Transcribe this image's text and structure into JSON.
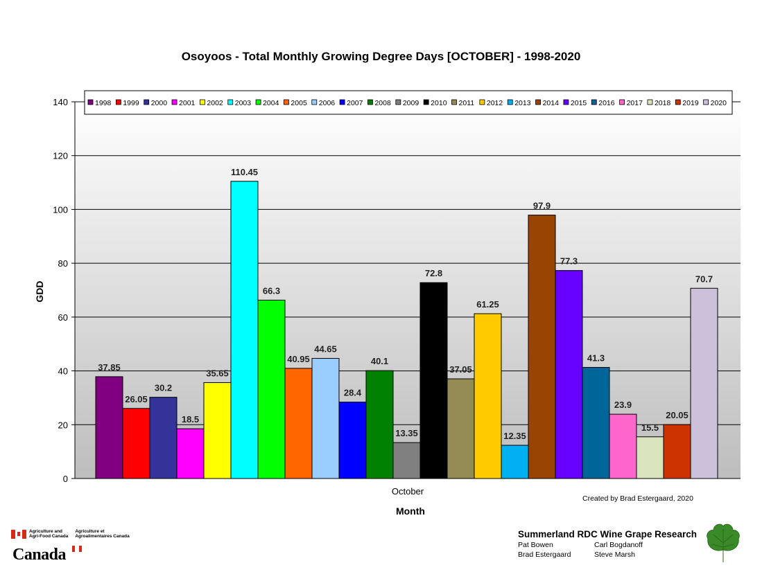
{
  "chart_data": {
    "type": "bar",
    "title": "Osoyoos - Total Monthly Growing Degree Days [OCTOBER] - 1998-2020",
    "xlabel": "Month",
    "ylabel": "GDD",
    "categories": [
      "October"
    ],
    "ylim": [
      0,
      140
    ],
    "yticks": [
      "0",
      "20",
      "40",
      "60",
      "80",
      "100",
      "120",
      "140"
    ],
    "grid": true,
    "legend_position": "top",
    "series": [
      {
        "name": "1998",
        "value": 37.85,
        "label": "37.85",
        "color": "#800080"
      },
      {
        "name": "1999",
        "value": 26.05,
        "label": "26.05",
        "color": "#ff0000"
      },
      {
        "name": "2000",
        "value": 30.2,
        "label": "30.2",
        "color": "#333399"
      },
      {
        "name": "2001",
        "value": 18.5,
        "label": "18.5",
        "color": "#ff00ff"
      },
      {
        "name": "2002",
        "value": 35.65,
        "label": "35.65",
        "color": "#ffff00"
      },
      {
        "name": "2003",
        "value": 110.45,
        "label": "110.45",
        "color": "#00ffff"
      },
      {
        "name": "2004",
        "value": 66.3,
        "label": "66.3",
        "color": "#00ff00"
      },
      {
        "name": "2005",
        "value": 40.95,
        "label": "40.95",
        "color": "#ff6600"
      },
      {
        "name": "2006",
        "value": 44.65,
        "label": "44.65",
        "color": "#99ccff"
      },
      {
        "name": "2007",
        "value": 28.4,
        "label": "28.4",
        "color": "#0000ff"
      },
      {
        "name": "2008",
        "value": 40.1,
        "label": "40.1",
        "color": "#008000"
      },
      {
        "name": "2009",
        "value": 13.35,
        "label": "13.35",
        "color": "#808080"
      },
      {
        "name": "2010",
        "value": 72.8,
        "label": "72.8",
        "color": "#000000"
      },
      {
        "name": "2011",
        "value": 37.05,
        "label": "37.05",
        "color": "#948a54"
      },
      {
        "name": "2012",
        "value": 61.25,
        "label": "61.25",
        "color": "#ffcc00"
      },
      {
        "name": "2013",
        "value": 12.35,
        "label": "12.35",
        "color": "#00b0f0"
      },
      {
        "name": "2014",
        "value": 97.9,
        "label": "97.9",
        "color": "#994400"
      },
      {
        "name": "2015",
        "value": 77.3,
        "label": "77.3",
        "color": "#6600ff"
      },
      {
        "name": "2016",
        "value": 41.3,
        "label": "41.3",
        "color": "#006699"
      },
      {
        "name": "2017",
        "value": 23.9,
        "label": "23.9",
        "color": "#ff66cc"
      },
      {
        "name": "2018",
        "value": 15.5,
        "label": "15.5",
        "color": "#d8e4bc"
      },
      {
        "name": "2019",
        "value": 20.05,
        "label": "20.05",
        "color": "#cc3300"
      },
      {
        "name": "2020",
        "value": 70.7,
        "label": "70.7",
        "color": "#ccc0da"
      }
    ]
  },
  "credit": "Created by Brad Estergaard, 2020",
  "footer": {
    "aafc_en": [
      "Agriculture and",
      "Agri-Food Canada"
    ],
    "aafc_fr": [
      "Agriculture et",
      "Agroalimentaires Canada"
    ],
    "canada_wordmark": "Canada",
    "research_title": "Summerland RDC Wine Grape Research",
    "names": [
      "Pat Bowen",
      "Carl Bogdanoff",
      "Brad Estergaard",
      "Steve Marsh"
    ]
  }
}
